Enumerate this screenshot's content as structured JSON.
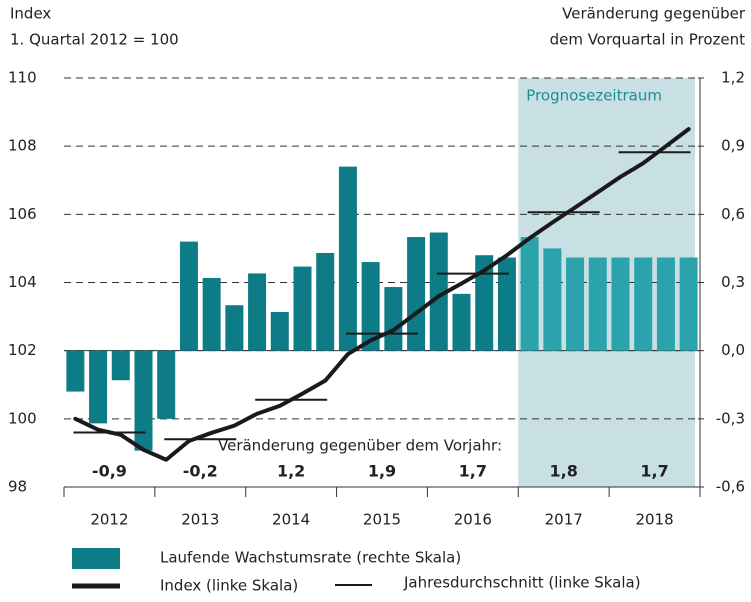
{
  "chart_data": {
    "type": "bar_line",
    "y_title_lines": [
      "Index",
      "1. Quartal 2012 = 100"
    ],
    "y2_title_lines": [
      "Veränderung gegenüber",
      "dem Vorquartal in Prozent"
    ],
    "forecast_label": "Prognosezeitraum",
    "annotation": "Veränderung gegenüber dem Vorjahr:",
    "years": [
      "2012",
      "2013",
      "2014",
      "2015",
      "2016",
      "2017",
      "2018"
    ],
    "ylim": [
      98,
      110
    ],
    "yticks": [
      98,
      100,
      102,
      104,
      106,
      108,
      110
    ],
    "y2lim": [
      -0.6,
      1.2
    ],
    "y2ticks": [
      {
        "value": -0.6,
        "label": "-0,6"
      },
      {
        "value": -0.3,
        "label": "-0,3"
      },
      {
        "value": 0,
        "label": "0,0"
      },
      {
        "value": 0.3,
        "label": "0,3"
      },
      {
        "value": 0.6,
        "label": "0,6"
      },
      {
        "value": 0.9,
        "label": "0,9"
      },
      {
        "value": 1.2,
        "label": "1,2"
      }
    ],
    "grid": true,
    "series": [
      {
        "name": "Laufende Wachstumsrate (rechte Skala)",
        "kind": "bar",
        "axis": "y2",
        "color": "#0e7c86",
        "forecast_color": "#2ba3ac",
        "values": [
          -0.18,
          -0.32,
          -0.13,
          -0.44,
          -0.3,
          0.48,
          0.32,
          0.2,
          0.34,
          0.17,
          0.37,
          0.43,
          0.81,
          0.39,
          0.28,
          0.5,
          0.52,
          0.25,
          0.42,
          0.41,
          0.5,
          0.45,
          0.41,
          0.41,
          0.41,
          0.41,
          0.41,
          0.41
        ]
      },
      {
        "name": "Index (linke Skala)",
        "kind": "line",
        "color": "#1a1a1a",
        "values": [
          100.0,
          99.68,
          99.53,
          99.09,
          98.8,
          99.35,
          99.59,
          99.8,
          100.15,
          100.38,
          100.74,
          101.12,
          101.9,
          102.3,
          102.6,
          103.1,
          103.6,
          103.97,
          104.35,
          104.8,
          105.3,
          105.76,
          106.2,
          106.65,
          107.1,
          107.5,
          108.0,
          108.5
        ]
      },
      {
        "name": "Jahresdurchschnitt (linke Skala)",
        "kind": "annual",
        "color": "#1a1a1a",
        "values": [
          99.6,
          99.4,
          100.56,
          102.5,
          104.26,
          106.06,
          107.82
        ]
      }
    ],
    "annual_change": {
      "values": [
        -0.9,
        -0.2,
        1.2,
        1.9,
        1.7,
        1.8,
        1.7
      ],
      "value_labels": [
        "-0,9",
        "-0,2",
        "1,2",
        "1,9",
        "1,7",
        "1,8",
        "1,7"
      ]
    }
  }
}
